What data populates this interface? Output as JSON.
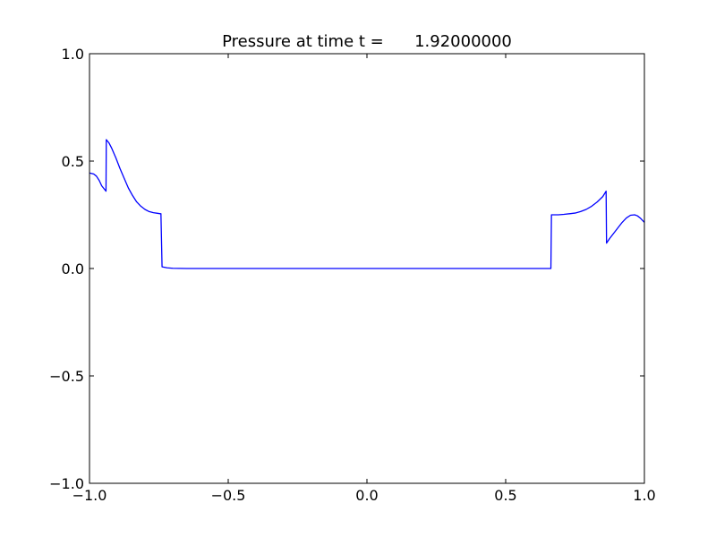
{
  "chart_data": {
    "type": "line",
    "title": "Pressure at time t =      1.92000000",
    "xlabel": "",
    "ylabel": "",
    "xlim": [
      -1.0,
      1.0
    ],
    "ylim": [
      -1.0,
      1.0
    ],
    "grid": false,
    "xticks": [
      -1.0,
      -0.5,
      0.0,
      0.5,
      1.0
    ],
    "yticks": [
      -1.0,
      -0.5,
      0.0,
      0.5,
      1.0
    ],
    "xtick_labels": [
      "−1.0",
      "−0.5",
      "0.0",
      "0.5",
      "1.0"
    ],
    "ytick_labels": [
      "−1.0",
      "−0.5",
      "0.0",
      "0.5",
      "1.0"
    ],
    "series": [
      {
        "color": "#0000ff",
        "x": [
          -1.0,
          -0.985,
          -0.975,
          -0.965,
          -0.956,
          -0.9405,
          -0.9395,
          -0.93,
          -0.92,
          -0.905,
          -0.89,
          -0.875,
          -0.86,
          -0.845,
          -0.83,
          -0.815,
          -0.8,
          -0.785,
          -0.77,
          -0.755,
          -0.745,
          -0.7425,
          -0.7385,
          -0.72,
          -0.7,
          -0.65,
          -0.6,
          -0.5,
          0.0,
          0.5,
          0.66,
          0.663,
          0.665,
          0.69,
          0.71,
          0.73,
          0.75,
          0.77,
          0.79,
          0.81,
          0.83,
          0.85,
          0.862,
          0.8635,
          0.867,
          0.875,
          0.89,
          0.905,
          0.92,
          0.935,
          0.95,
          0.965,
          0.975,
          0.985,
          1.0
        ],
        "y": [
          0.445,
          0.44,
          0.43,
          0.41,
          0.385,
          0.36,
          0.6,
          0.585,
          0.56,
          0.515,
          0.465,
          0.42,
          0.375,
          0.34,
          0.31,
          0.29,
          0.275,
          0.265,
          0.26,
          0.257,
          0.255,
          0.255,
          0.008,
          0.003,
          0.001,
          0.0,
          0.0,
          0.0,
          0.0,
          0.0,
          0.0,
          0.0,
          0.25,
          0.25,
          0.252,
          0.255,
          0.258,
          0.265,
          0.275,
          0.29,
          0.31,
          0.335,
          0.36,
          0.118,
          0.125,
          0.14,
          0.165,
          0.19,
          0.215,
          0.235,
          0.248,
          0.25,
          0.245,
          0.235,
          0.215
        ]
      }
    ]
  }
}
